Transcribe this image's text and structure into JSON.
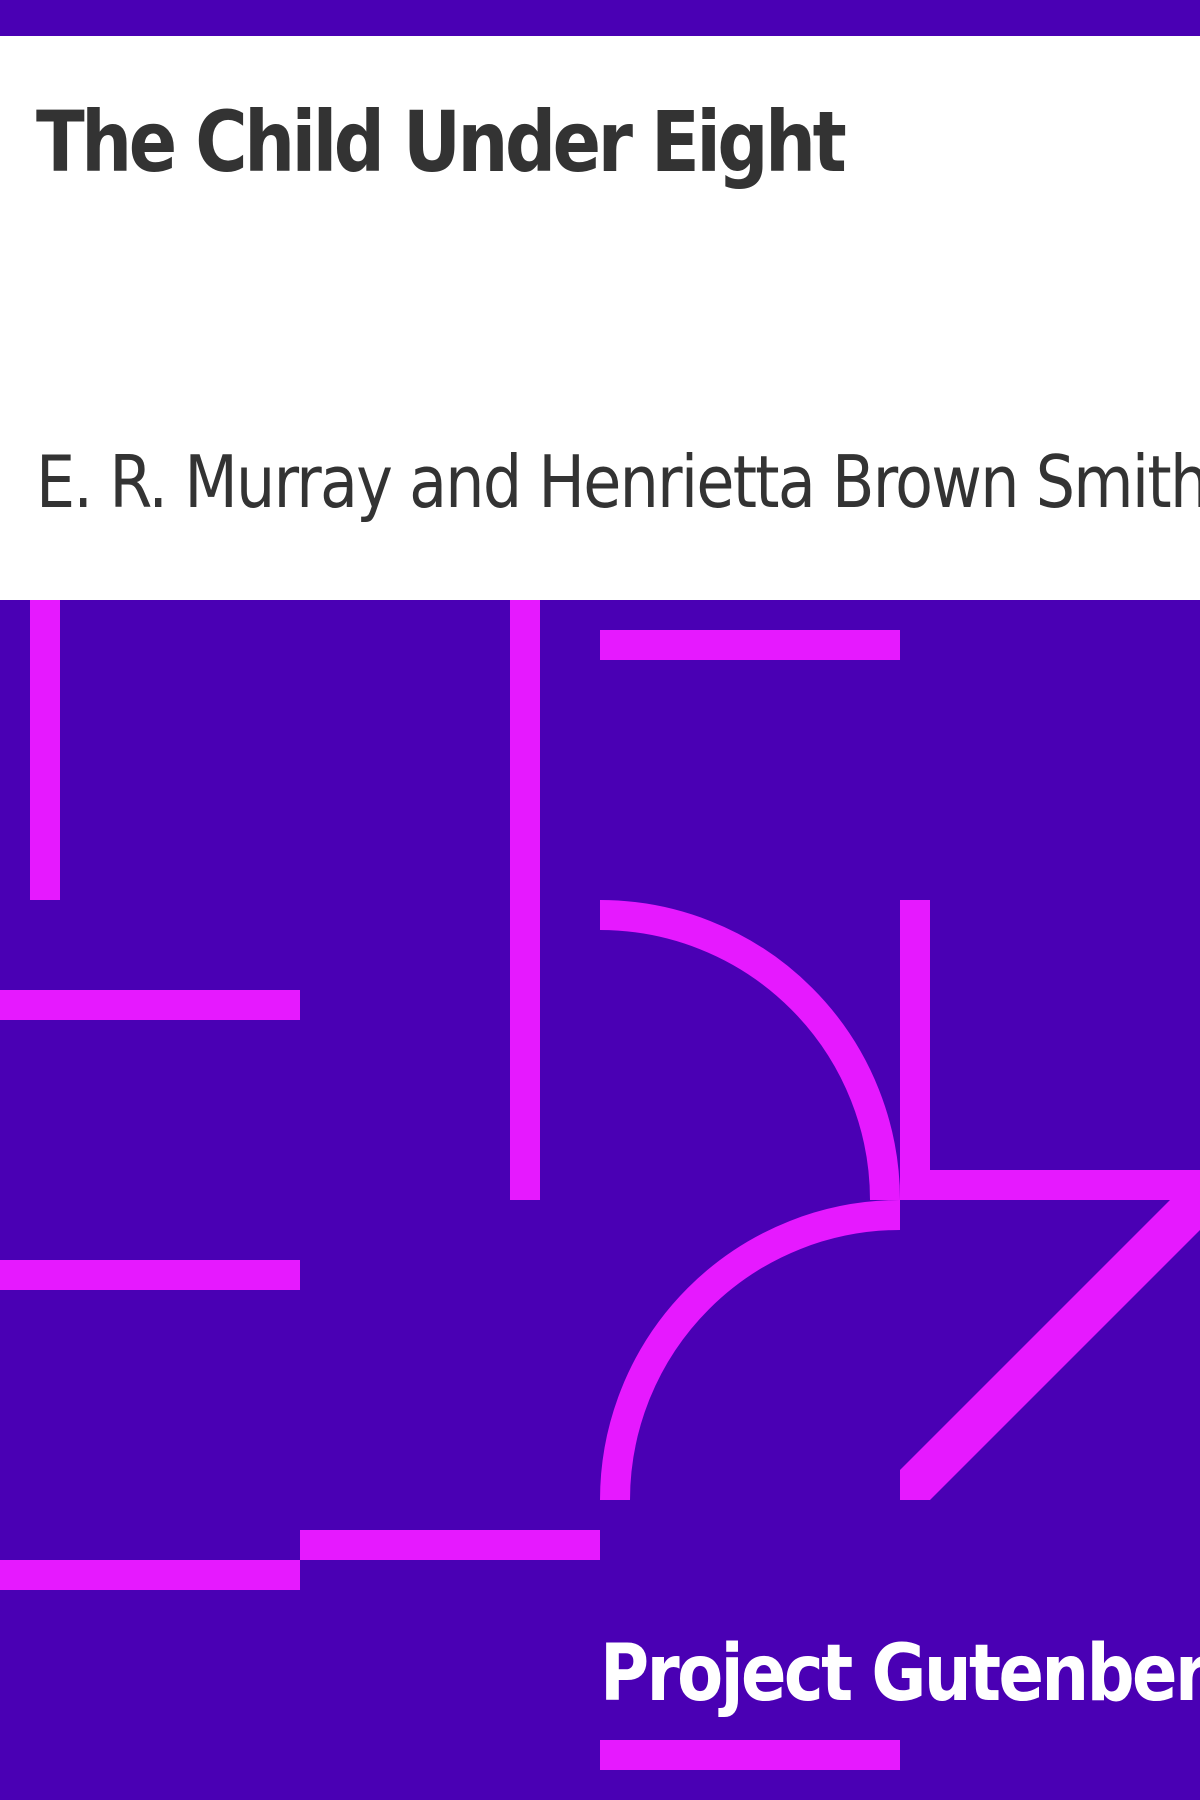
{
  "book": {
    "title": "The Child Under Eight",
    "author": "E. R. Murray and Henrietta Brown Smith",
    "publisher": "Project Gutenberg"
  },
  "colors": {
    "background": "#4a00b4",
    "panel": "#ffffff",
    "pattern": "#e619ff",
    "title_text": "#333333",
    "publisher_text": "#ffffff"
  }
}
